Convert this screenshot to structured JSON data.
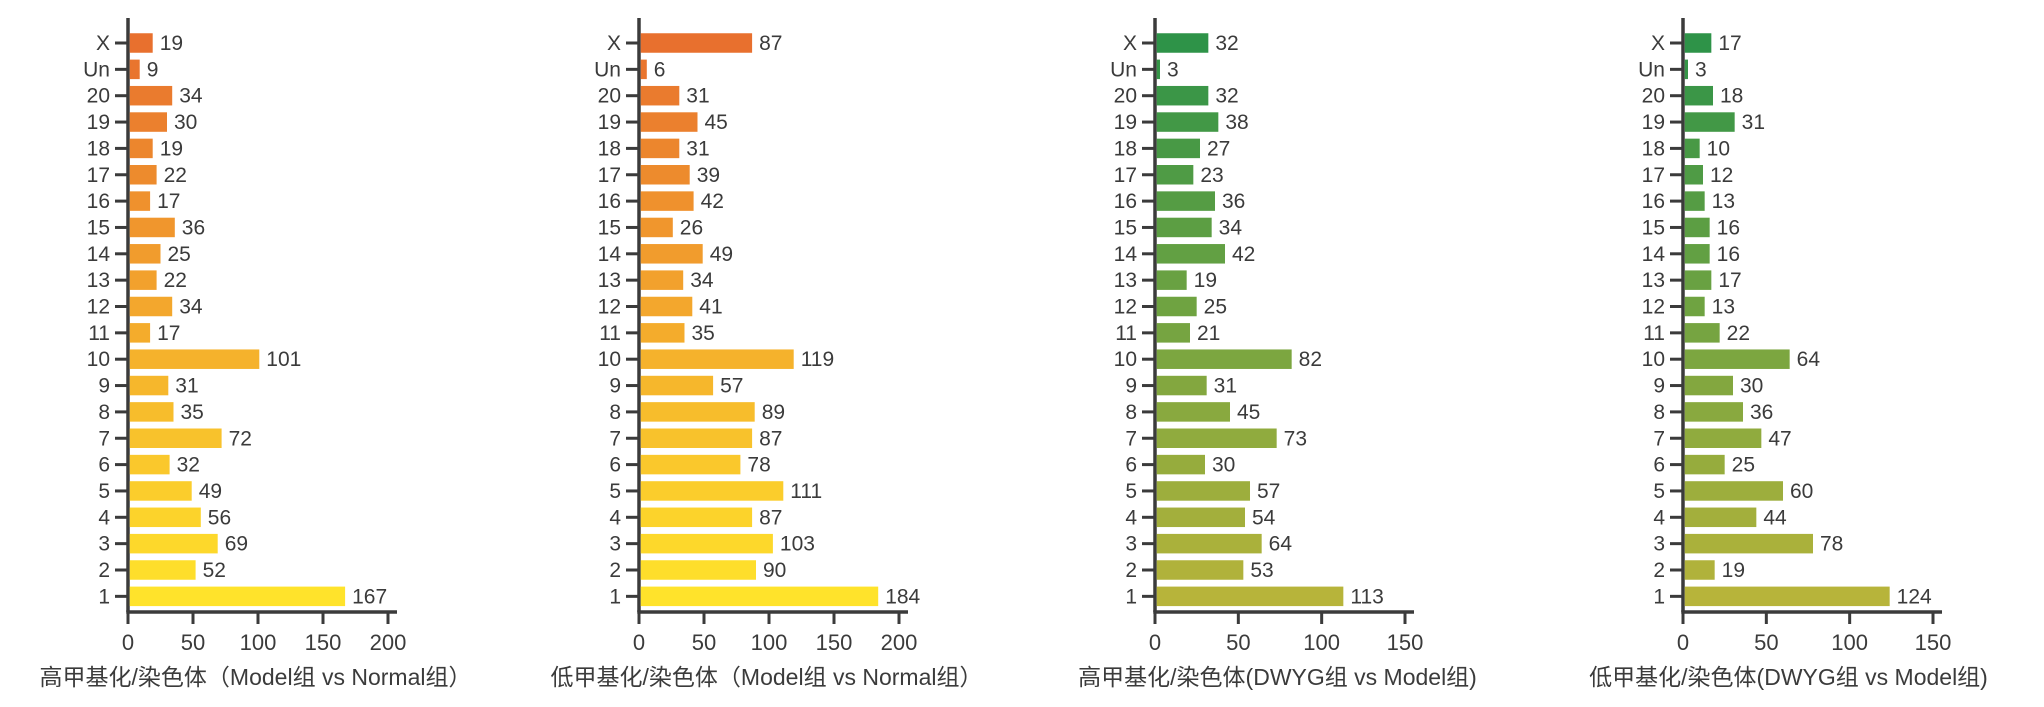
{
  "page": {
    "background": "#ffffff",
    "axis_color": "#3b3b3b",
    "text_color": "#3b3b3b"
  },
  "chart_data": [
    {
      "type": "bar",
      "orientation": "horizontal",
      "title": "高甲基化/染色体（Model组 vs Normal组）",
      "categories": [
        "X",
        "Un",
        "20",
        "19",
        "18",
        "17",
        "16",
        "15",
        "14",
        "13",
        "12",
        "11",
        "10",
        "9",
        "8",
        "7",
        "6",
        "5",
        "4",
        "3",
        "2",
        "1"
      ],
      "values": [
        19,
        9,
        34,
        30,
        19,
        22,
        17,
        36,
        25,
        22,
        34,
        17,
        101,
        31,
        35,
        72,
        32,
        49,
        56,
        69,
        52,
        167
      ],
      "xticks": [
        0,
        50,
        100,
        150,
        200
      ],
      "xlim": [
        0,
        200
      ],
      "grid": false,
      "legend": "none",
      "color_top": "#e8702e",
      "color_bottom": "#ffe32b"
    },
    {
      "type": "bar",
      "orientation": "horizontal",
      "title": "低甲基化/染色体（Model组 vs Normal组）",
      "categories": [
        "X",
        "Un",
        "20",
        "19",
        "18",
        "17",
        "16",
        "15",
        "14",
        "13",
        "12",
        "11",
        "10",
        "9",
        "8",
        "7",
        "6",
        "5",
        "4",
        "3",
        "2",
        "1"
      ],
      "values": [
        87,
        6,
        31,
        45,
        31,
        39,
        42,
        26,
        49,
        34,
        41,
        35,
        119,
        57,
        89,
        87,
        78,
        111,
        87,
        103,
        90,
        184
      ],
      "xticks": [
        0,
        50,
        100,
        150,
        200
      ],
      "xlim": [
        0,
        200
      ],
      "grid": false,
      "legend": "none",
      "color_top": "#e8702e",
      "color_bottom": "#ffe32b"
    },
    {
      "type": "bar",
      "orientation": "horizontal",
      "title": "高甲基化/染色体(DWYG组 vs Model组)",
      "categories": [
        "X",
        "Un",
        "20",
        "19",
        "18",
        "17",
        "16",
        "15",
        "14",
        "13",
        "12",
        "11",
        "10",
        "9",
        "8",
        "7",
        "6",
        "5",
        "4",
        "3",
        "2",
        "1"
      ],
      "values": [
        32,
        3,
        32,
        38,
        27,
        23,
        36,
        34,
        42,
        19,
        25,
        21,
        82,
        31,
        45,
        73,
        30,
        57,
        54,
        64,
        53,
        113
      ],
      "xticks": [
        0,
        50,
        100,
        150
      ],
      "xlim": [
        0,
        150
      ],
      "grid": false,
      "legend": "none",
      "color_top": "#2e9348",
      "color_bottom": "#b7b43a"
    },
    {
      "type": "bar",
      "orientation": "horizontal",
      "title": "低甲基化/染色体(DWYG组 vs Model组)",
      "categories": [
        "X",
        "Un",
        "20",
        "19",
        "18",
        "17",
        "16",
        "15",
        "14",
        "13",
        "12",
        "11",
        "10",
        "9",
        "8",
        "7",
        "6",
        "5",
        "4",
        "3",
        "2",
        "1"
      ],
      "values": [
        17,
        3,
        18,
        31,
        10,
        12,
        13,
        16,
        16,
        17,
        13,
        22,
        64,
        30,
        36,
        47,
        25,
        60,
        44,
        78,
        19,
        124
      ],
      "xticks": [
        0,
        50,
        100,
        150
      ],
      "xlim": [
        0,
        150
      ],
      "grid": false,
      "legend": "none",
      "color_top": "#2e9348",
      "color_bottom": "#b7b43a"
    }
  ]
}
